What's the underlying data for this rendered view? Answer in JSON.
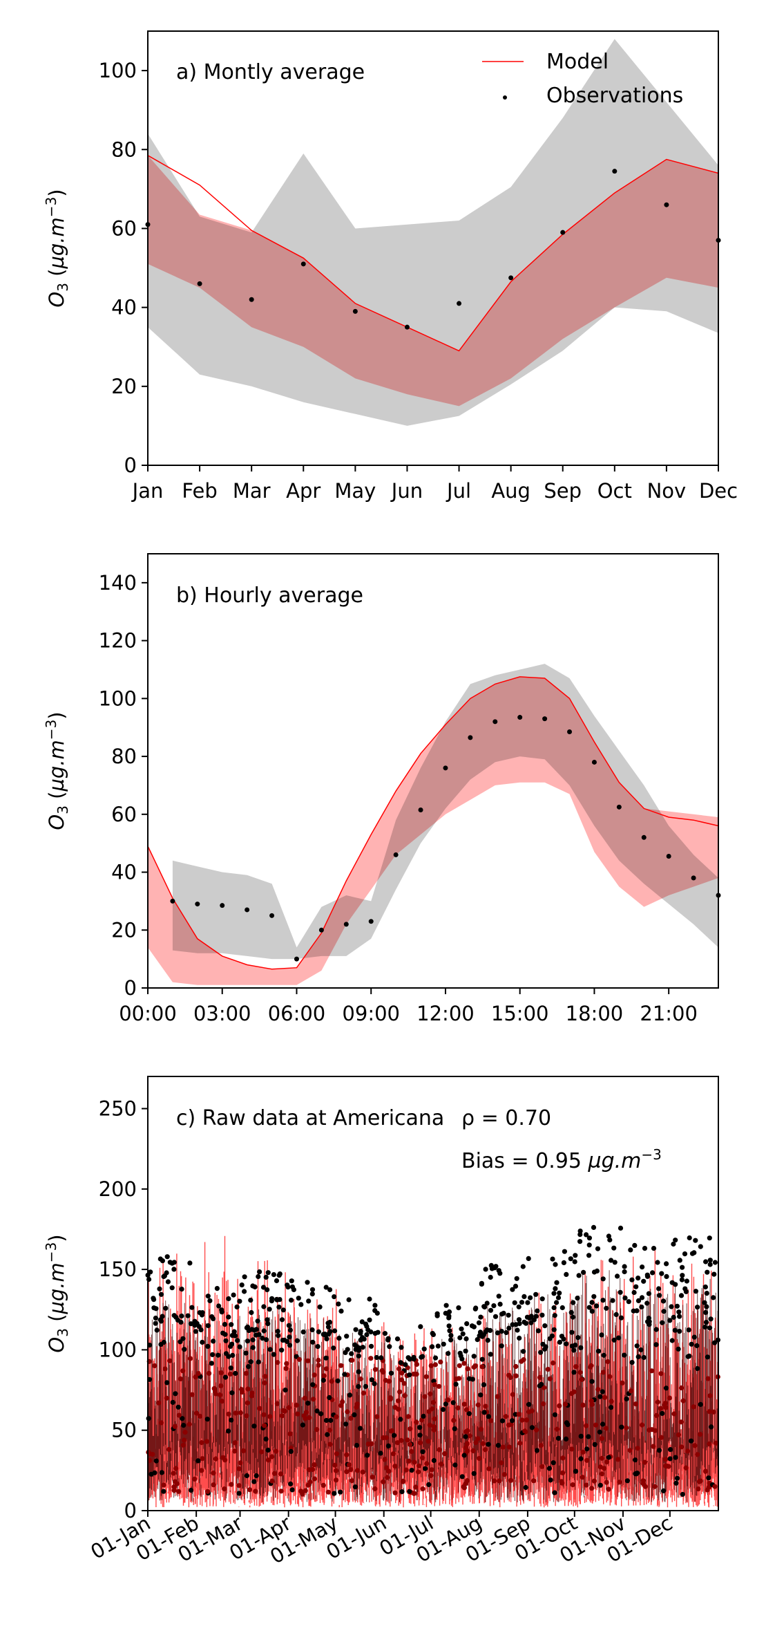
{
  "figure": {
    "panel_a": {
      "title": "a) Montly average",
      "ylabel": "O3 (µg.m-3)",
      "legend": {
        "model": "Model",
        "observations": "Observations"
      }
    },
    "panel_b": {
      "title": "b) Hourly average",
      "ylabel": "O3 (µg.m-3)"
    },
    "panel_c": {
      "title": "c) Raw data at Americana",
      "rho": "ρ = 0.70",
      "bias_prefix": "Bias = 0.95 ",
      "bias_unit": "µg.m-3",
      "ylabel": "O3 (µg.m-3)"
    }
  },
  "colors": {
    "model_line": "#ff0000",
    "model_band": "#ff9999",
    "obs_band": "#cccccc",
    "obs_point": "#000000",
    "raw_model": "#ff2020",
    "raw_obs_dark": "#000000"
  },
  "chart_data": [
    {
      "type": "line",
      "title": "a) Montly average",
      "categories": [
        "Jan",
        "Feb",
        "Mar",
        "Apr",
        "May",
        "Jun",
        "Jul",
        "Aug",
        "Sep",
        "Oct",
        "Nov",
        "Dec"
      ],
      "ylim": [
        0,
        110
      ],
      "yticks": [
        0,
        20,
        40,
        60,
        80,
        100
      ],
      "ylabel": "O3 (µg.m-3)",
      "legend_position": "top-right",
      "series": [
        {
          "name": "Model",
          "kind": "line",
          "values": [
            78.5,
            71,
            59.5,
            52.5,
            41,
            35,
            29,
            46.5,
            58.5,
            69,
            77.5,
            74
          ]
        },
        {
          "name": "Observations",
          "kind": "points",
          "values": [
            61,
            46,
            42,
            51,
            39,
            35,
            41,
            47.5,
            59,
            74.5,
            66,
            57
          ]
        }
      ],
      "bands": {
        "model": {
          "upper": [
            78.5,
            63.5,
            59.5,
            52.5,
            41,
            35,
            29,
            46.5,
            58.5,
            69,
            77.5,
            74
          ],
          "lower": [
            51,
            45,
            35,
            30,
            22,
            18,
            15,
            22,
            32,
            40,
            47.5,
            45
          ]
        },
        "observations": {
          "upper": [
            84,
            63,
            59,
            79,
            60,
            61,
            62,
            70.5,
            88,
            108,
            92,
            76
          ],
          "lower": [
            35,
            23,
            20,
            16,
            13,
            10,
            12.5,
            20.5,
            29,
            40,
            39,
            33.5
          ]
        }
      }
    },
    {
      "type": "line",
      "title": "b) Hourly average",
      "x": [
        "00:00",
        "01:00",
        "02:00",
        "03:00",
        "04:00",
        "05:00",
        "06:00",
        "07:00",
        "08:00",
        "09:00",
        "10:00",
        "11:00",
        "12:00",
        "13:00",
        "14:00",
        "15:00",
        "16:00",
        "17:00",
        "18:00",
        "19:00",
        "20:00",
        "21:00",
        "22:00",
        "23:00"
      ],
      "xticks": [
        "00:00",
        "03:00",
        "06:00",
        "09:00",
        "12:00",
        "15:00",
        "18:00",
        "21:00"
      ],
      "ylim": [
        0,
        150
      ],
      "yticks": [
        0,
        20,
        40,
        60,
        80,
        100,
        120,
        140
      ],
      "ylabel": "O3 (µg.m-3)",
      "series": [
        {
          "name": "Model",
          "kind": "line",
          "values": [
            49,
            31,
            17,
            11,
            8,
            6.5,
            7,
            19,
            37,
            53,
            68,
            81,
            91,
            100,
            105,
            107.5,
            107,
            100,
            85,
            71,
            62,
            59,
            58,
            56
          ]
        },
        {
          "name": "Observations",
          "kind": "points",
          "values": [
            null,
            30,
            29,
            28.5,
            27,
            25,
            10,
            20,
            22,
            23,
            46,
            61.5,
            76,
            86.5,
            92,
            93.5,
            93,
            88.5,
            78,
            62.5,
            52,
            45.5,
            38,
            32
          ]
        }
      ],
      "bands": {
        "model": {
          "upper": [
            49,
            31,
            17,
            11,
            8,
            6.5,
            7,
            19,
            37,
            53,
            68,
            81,
            91,
            100,
            105,
            107.5,
            107,
            100,
            85,
            71,
            62,
            61,
            60,
            59
          ],
          "lower": [
            14,
            2,
            1,
            1,
            1,
            1,
            1,
            6,
            22,
            34,
            46,
            53,
            60,
            65,
            70,
            71,
            71,
            67,
            47,
            35,
            28,
            32,
            35,
            38
          ]
        },
        "observations": {
          "upper": [
            null,
            44,
            42,
            40,
            39,
            36,
            14,
            28,
            32,
            30,
            58,
            76,
            92,
            105,
            108,
            110,
            112,
            107,
            94,
            82,
            70,
            56,
            46,
            38
          ],
          "lower": [
            null,
            13,
            12,
            12,
            11,
            10,
            10,
            11,
            11,
            17,
            34,
            50,
            62,
            72,
            78,
            80,
            79,
            70,
            56,
            44,
            36,
            29,
            22,
            14
          ]
        }
      }
    },
    {
      "type": "line",
      "title": "c) Raw data at Americana",
      "xticks": [
        "01-Jan",
        "01-Feb",
        "01-Mar",
        "01-Apr",
        "01-May",
        "01-Jun",
        "01-Jul",
        "01-Aug",
        "01-Sep",
        "01-Oct",
        "01-Nov",
        "01-Dec"
      ],
      "ylim": [
        0,
        270
      ],
      "yticks": [
        0,
        50,
        100,
        150,
        200,
        250
      ],
      "ylabel": "O3 (µg.m-3)",
      "annotations": [
        "ρ = 0.70",
        "Bias = 0.95 µg.m-3"
      ],
      "series": [
        {
          "name": "Model",
          "kind": "line",
          "monthly_peak_values": [
            190,
            175,
            172,
            150,
            128,
            125,
            118,
            128,
            150,
            165,
            170,
            175
          ]
        },
        {
          "name": "Observations",
          "kind": "points",
          "monthly_peak_values": [
            160,
            148,
            150,
            148,
            132,
            115,
            128,
            153,
            162,
            178,
            167,
            171
          ]
        }
      ]
    }
  ]
}
